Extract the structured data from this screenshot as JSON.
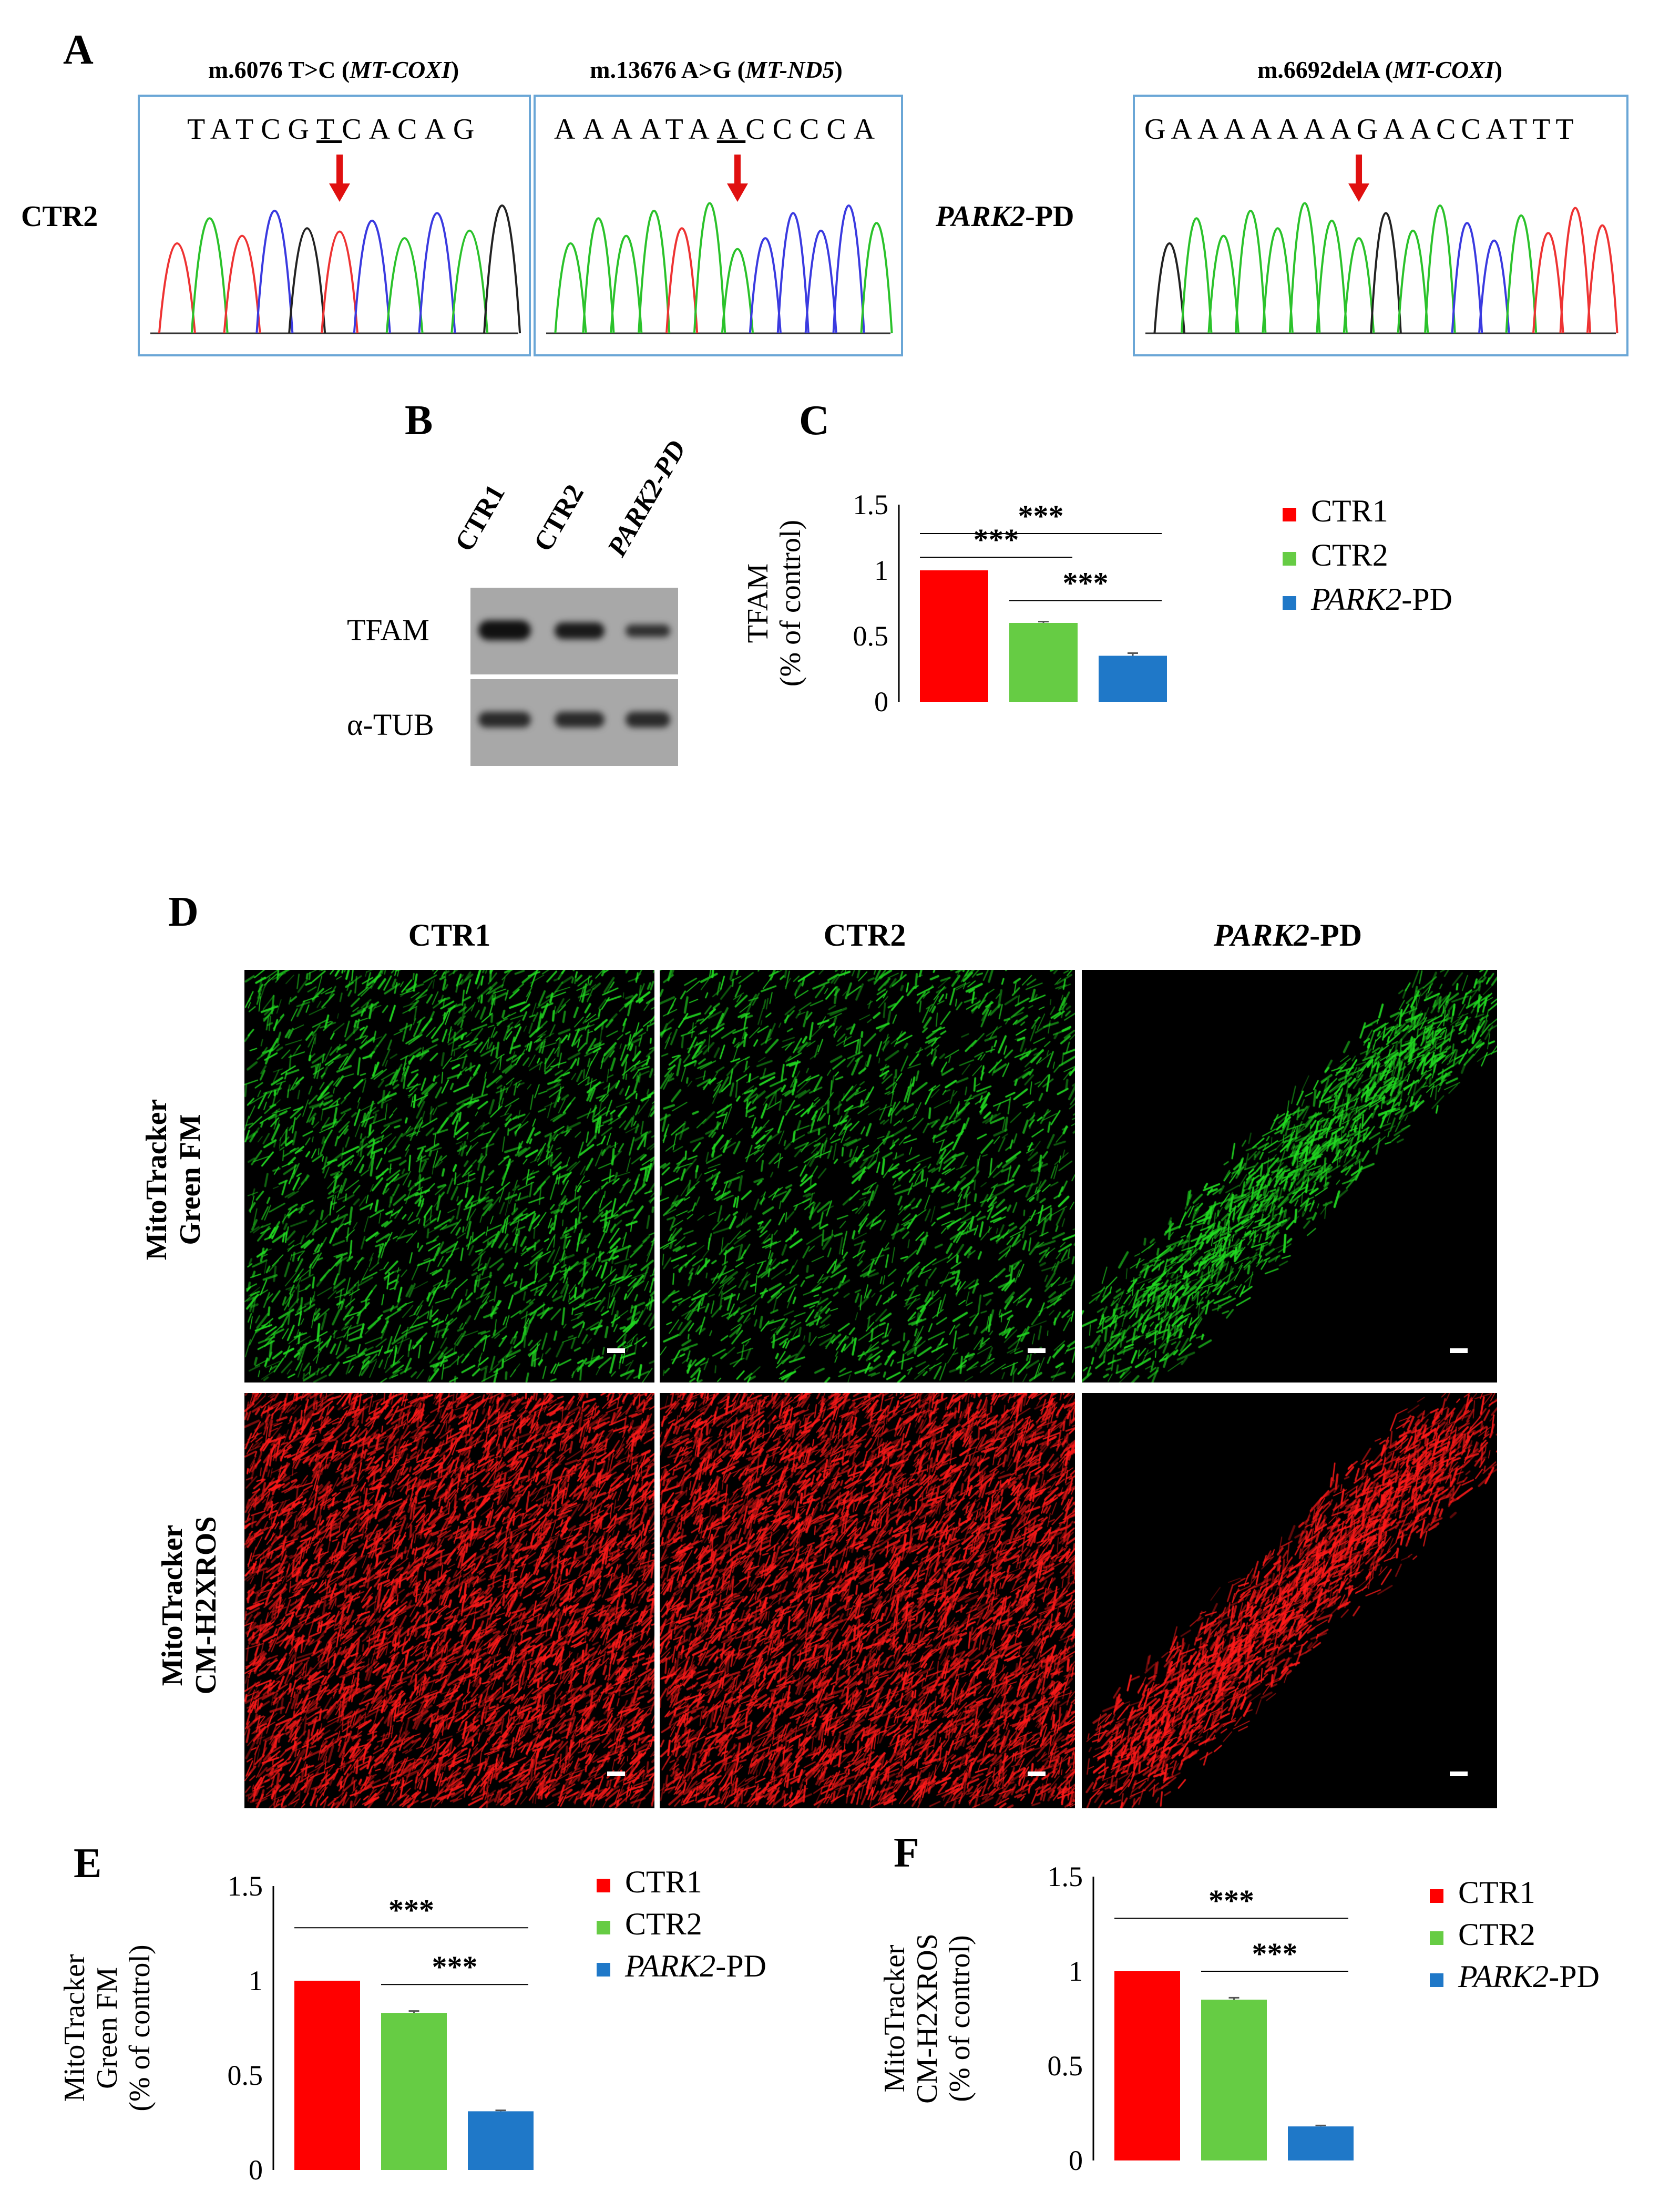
{
  "panel_labels": {
    "a": "A",
    "b": "B",
    "c": "C",
    "d": "D",
    "e": "E",
    "f": "F"
  },
  "panel_a": {
    "row_label_left": "CTR2",
    "row_label_right": "PARK2",
    "row_label_right_suffix": "-PD",
    "traces": [
      {
        "title_pre": "m.6076 T>C (",
        "title_italic": "MT-COXI",
        "title_post": ")",
        "sequence": "TATCGTCACAG",
        "underlined_index": 5
      },
      {
        "title_pre": "m.13676 A>G (",
        "title_italic": "MT-ND5",
        "title_post": ")",
        "sequence": "AAAATAACCCCA",
        "underlined_index": 6
      },
      {
        "title_pre": "m.6692delA (",
        "title_italic": "MT-COXI",
        "title_post": ")",
        "sequence": "GAAAAAAAGAACCATTT",
        "underlined_index": -1
      }
    ],
    "colors": {
      "A": "#2bc22b",
      "C": "#3a3ae0",
      "G": "#222222",
      "T": "#ee3333",
      "arrow": "#e01010",
      "box": "#6aa6d6"
    }
  },
  "panel_b": {
    "lanes": [
      "CTR1",
      "CTR2",
      "PARK2-PD"
    ],
    "rows": [
      {
        "label": "TFAM",
        "band_intensity": [
          1.0,
          0.85,
          0.55
        ]
      },
      {
        "label": "α-TUB",
        "band_intensity": [
          0.8,
          0.8,
          0.8
        ]
      }
    ]
  },
  "legend": {
    "items": [
      {
        "label": "CTR1",
        "color": "#ff0000",
        "italic_part": ""
      },
      {
        "label": "CTR2",
        "color": "#66cc44",
        "italic_part": ""
      },
      {
        "label": "-PD",
        "color": "#1f78c8",
        "italic_part": "PARK2"
      }
    ]
  },
  "panel_d": {
    "columns": [
      "CTR1",
      "CTR2",
      "PARK2-PD"
    ],
    "rows": [
      {
        "label_line1": "MitoTracker",
        "label_line2": "Green FM",
        "color": "#22dd22"
      },
      {
        "label_line1": "MitoTracker",
        "label_line2": "CM-H2XROS",
        "color": "#ff1a1a"
      }
    ]
  },
  "chart_data": [
    {
      "panel": "C",
      "type": "bar",
      "categories": [
        "CTR1",
        "CTR2",
        "PARK2-PD"
      ],
      "values": [
        1.0,
        0.6,
        0.35
      ],
      "errors": [
        0.0,
        0.01,
        0.02
      ],
      "colors": [
        "#ff0000",
        "#66cc44",
        "#1f78c8"
      ],
      "ylabel_line1": "TFAM",
      "ylabel_line2": "(% of control)",
      "ylim": [
        0,
        1.5
      ],
      "yticks": [
        "0",
        "0.5",
        "1",
        "1.5"
      ],
      "significance": [
        {
          "from": 0,
          "to": 2,
          "label": "***"
        },
        {
          "from": 0,
          "to": 1,
          "label": "***"
        },
        {
          "from": 1,
          "to": 2,
          "label": "***"
        }
      ]
    },
    {
      "panel": "E",
      "type": "bar",
      "categories": [
        "CTR1",
        "CTR2",
        "PARK2-PD"
      ],
      "values": [
        1.0,
        0.83,
        0.31
      ],
      "errors": [
        0.0,
        0.01,
        0.005
      ],
      "colors": [
        "#ff0000",
        "#66cc44",
        "#1f78c8"
      ],
      "ylabel_line1": "MitoTracker",
      "ylabel_line2": "Green FM",
      "ylabel_line3": "(% of control)",
      "ylim": [
        0,
        1.5
      ],
      "yticks": [
        "0",
        "0.5",
        "1",
        "1.5"
      ],
      "significance": [
        {
          "from": 0,
          "to": 2,
          "label": "***"
        },
        {
          "from": 1,
          "to": 2,
          "label": "***"
        }
      ]
    },
    {
      "panel": "F",
      "type": "bar",
      "categories": [
        "CTR1",
        "CTR2",
        "PARK2-PD"
      ],
      "values": [
        1.0,
        0.85,
        0.18
      ],
      "errors": [
        0.0,
        0.01,
        0.005
      ],
      "colors": [
        "#ff0000",
        "#66cc44",
        "#1f78c8"
      ],
      "ylabel_line1": "MitoTracker",
      "ylabel_line2": "CM-H2XROS",
      "ylabel_line3": "(% of control)",
      "ylim": [
        0,
        1.5
      ],
      "yticks": [
        "0",
        "0.5",
        "1",
        "1.5"
      ],
      "significance": [
        {
          "from": 0,
          "to": 2,
          "label": "***"
        },
        {
          "from": 1,
          "to": 2,
          "label": "***"
        }
      ]
    }
  ]
}
